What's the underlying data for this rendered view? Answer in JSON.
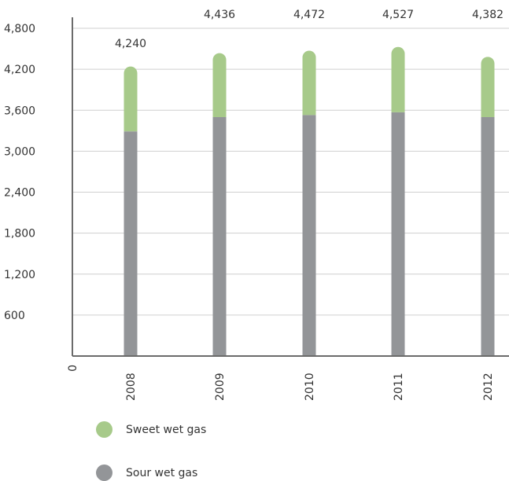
{
  "chart_data": {
    "type": "bar",
    "stacked": true,
    "categories": [
      "2008",
      "2009",
      "2010",
      "2011",
      "2012"
    ],
    "series": [
      {
        "name": "Sour wet gas",
        "color": "#939598",
        "values": [
          3290,
          3500,
          3530,
          3570,
          3500
        ]
      },
      {
        "name": "Sweet wet gas",
        "color": "#a7ca8a",
        "values": [
          950,
          936,
          942,
          957,
          882
        ]
      }
    ],
    "totals": [
      "4,240",
      "4,436",
      "4,472",
      "4,527",
      "4,382"
    ],
    "y_ticks": [
      {
        "value": 0,
        "label": "0"
      },
      {
        "value": 600,
        "label": "600"
      },
      {
        "value": 1200,
        "label": "1,200"
      },
      {
        "value": 1800,
        "label": "1,800"
      },
      {
        "value": 2400,
        "label": "2,400"
      },
      {
        "value": 3000,
        "label": "3,000"
      },
      {
        "value": 3600,
        "label": "3,600"
      },
      {
        "value": 4200,
        "label": "4,200"
      },
      {
        "value": 4800,
        "label": "4,800"
      }
    ],
    "ylim": [
      0,
      4800
    ],
    "grid": true,
    "legend_position": "bottom-left"
  },
  "legend": {
    "items": [
      {
        "label": "Sweet wet gas",
        "color": "#a7ca8a"
      },
      {
        "label": "Sour wet gas",
        "color": "#939598"
      }
    ]
  }
}
